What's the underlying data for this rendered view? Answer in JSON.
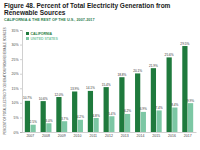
{
  "chart_data": {
    "type": "bar",
    "title": "Figure 48. Percent of Total Electricity Generation from Renewable Sources",
    "subtitle": "CALIFORNIA & THE REST OF THE U.S., 2007-2017",
    "y_label": "PERCENT OF TOTAL ELECTRICITY GENERATION FROM RENEWABLE SOURCES",
    "categories": [
      "2007",
      "2008",
      "2009",
      "2010",
      "2011",
      "2012",
      "2013",
      "2014",
      "2015",
      "2016",
      "2017"
    ],
    "series": [
      {
        "name": "CALIFORNIA",
        "color": "#1f7a3d",
        "values": [
          10.7,
          10.6,
          12.0,
          13.9,
          14.1,
          15.4,
          18.8,
          20.1,
          21.9,
          25.6,
          29.5
        ],
        "value_labels": [
          "10.7%",
          "10.6%",
          "12.0%",
          "13.9%",
          "14.1%",
          "15.4%",
          "18.8%",
          "20.1%",
          "21.9%",
          "25.6%",
          "29.5%"
        ]
      },
      {
        "name": "UNITED STATES",
        "color": "#7cc7a4",
        "values": [
          2.5,
          3.0,
          3.7,
          4.2,
          4.8,
          5.4,
          6.2,
          6.9,
          7.4,
          8.4,
          9.9
        ],
        "value_labels": [
          "2.5%",
          "3.0%",
          "3.7%",
          "4.2%",
          "4.8%",
          "5.4%",
          "6.2%",
          "6.9%",
          "7.4%",
          "8.4%",
          "9.9%"
        ]
      }
    ],
    "ylim": [
      0,
      35
    ],
    "yticks": [
      {
        "value": 0,
        "label": "0%"
      },
      {
        "value": 5,
        "label": "5%"
      },
      {
        "value": 10,
        "label": "10%"
      },
      {
        "value": 15,
        "label": "15%"
      },
      {
        "value": 20,
        "label": "20%"
      },
      {
        "value": 25,
        "label": "25%"
      },
      {
        "value": 30,
        "label": "30%"
      },
      {
        "value": 35,
        "label": "35%"
      }
    ],
    "grid": false,
    "legend": "upper left",
    "data_labels": true
  }
}
